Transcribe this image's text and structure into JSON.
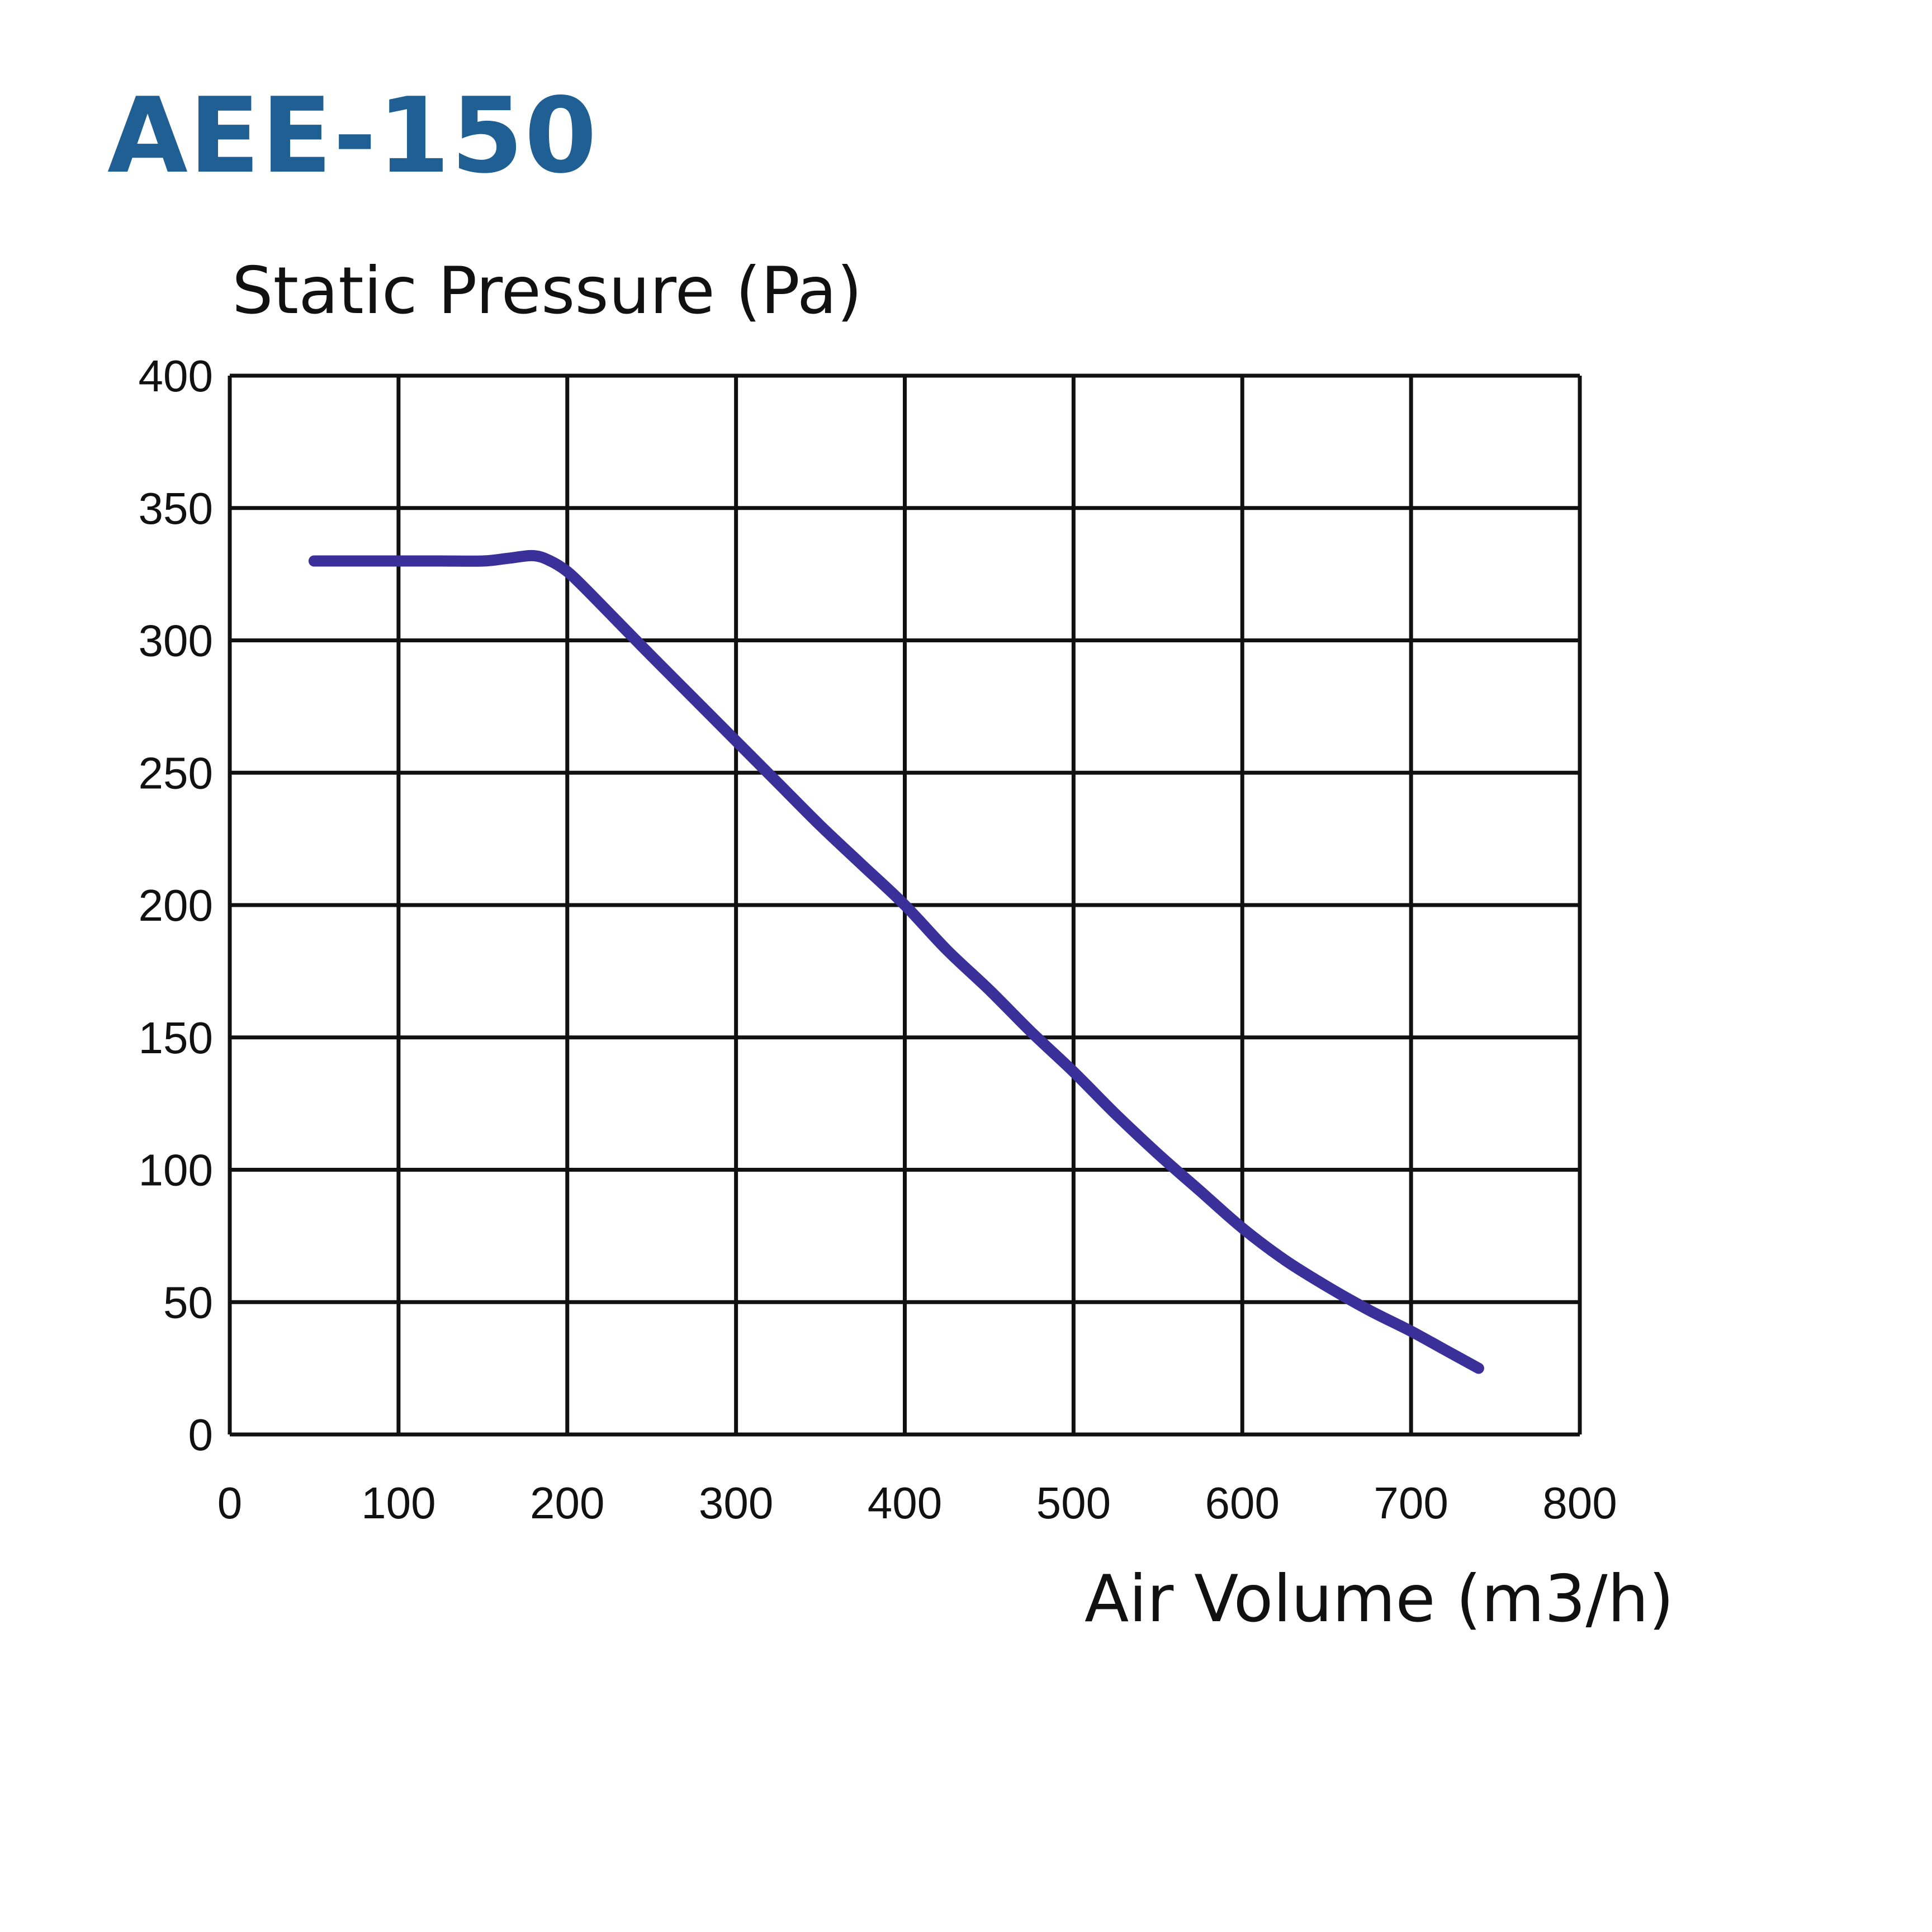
{
  "header": {
    "model_name": "AEE-150"
  },
  "colors": {
    "title": "#1f5f93",
    "grid": "#111111",
    "curve": "#3b2f99",
    "text": "#111111"
  },
  "chart_data": {
    "type": "line",
    "title": "AEE-150",
    "xlabel": "Air Volume (m3/h)",
    "ylabel": "Static Pressure (Pa)",
    "xlim": [
      0,
      800
    ],
    "ylim": [
      0,
      400
    ],
    "x_ticks": [
      0,
      100,
      200,
      300,
      400,
      500,
      600,
      700,
      800
    ],
    "y_ticks": [
      0,
      50,
      100,
      150,
      200,
      250,
      300,
      350,
      400
    ],
    "grid": true,
    "series": [
      {
        "name": "AEE-150",
        "x": [
          50,
          75,
          100,
          125,
          150,
          165,
          180,
          190,
          200,
          210,
          230,
          250,
          275,
          300,
          325,
          350,
          375,
          400,
          425,
          450,
          475,
          500,
          525,
          550,
          575,
          600,
          625,
          650,
          675,
          700,
          720,
          740
        ],
        "y": [
          330,
          330,
          330,
          330,
          330,
          331,
          332,
          330,
          326,
          320,
          307,
          294,
          278,
          262,
          246,
          230,
          215,
          200,
          183,
          168,
          152,
          137,
          121,
          106,
          92,
          78,
          66,
          56,
          47,
          39,
          32,
          25
        ]
      }
    ]
  }
}
